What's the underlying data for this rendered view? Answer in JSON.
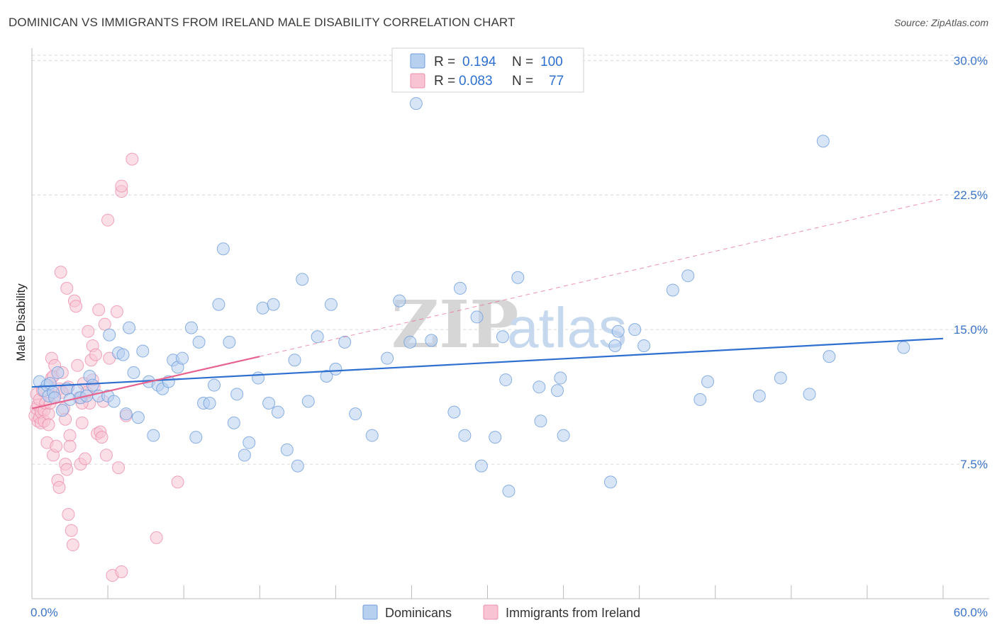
{
  "header": {
    "title": "DOMINICAN VS IMMIGRANTS FROM IRELAND MALE DISABILITY CORRELATION CHART",
    "source": "Source: ZipAtlas.com"
  },
  "watermark": {
    "zip": "ZIP",
    "atlas": "atlas"
  },
  "colors": {
    "blue_fill": "#b8d0f0",
    "blue_stroke": "#6f9edc",
    "blue_line": "#2e6fd0",
    "pink_fill": "#f8c4d4",
    "pink_stroke": "#ee8fab",
    "pink_line": "#e8628e",
    "grid": "#d9d9d9",
    "axis_label": "#3b73c8"
  },
  "legend": {
    "rows": [
      {
        "r_label": "R =",
        "r_value": "0.194",
        "n_label": "N =",
        "n_value": "100",
        "color": "blue"
      },
      {
        "r_label": "R =",
        "r_value": "0.083",
        "n_label": "N =",
        "n_value": "77",
        "color": "pink"
      }
    ]
  },
  "bottom_legend": [
    {
      "label": "Dominicans",
      "color": "blue"
    },
    {
      "label": "Immigrants from Ireland",
      "color": "pink"
    }
  ],
  "chart_data": {
    "type": "scatter",
    "title": "DOMINICAN VS IMMIGRANTS FROM IRELAND MALE DISABILITY CORRELATION CHART",
    "xlabel": "",
    "ylabel": "Male Disability",
    "xlim": [
      0,
      60
    ],
    "ylim": [
      0,
      31
    ],
    "x_tick_labels": [
      "0.0%",
      "60.0%"
    ],
    "y_ticks": [
      7.5,
      15.0,
      22.5,
      30.0
    ],
    "y_tick_labels": [
      "7.5%",
      "15.0%",
      "22.5%",
      "30.0%"
    ],
    "grid": true,
    "series": [
      {
        "name": "Dominicans",
        "color": "blue",
        "r": 0.194,
        "n": 100,
        "trend": {
          "x": [
            0,
            60
          ],
          "y": [
            11.8,
            14.5
          ],
          "dashed_extension": null
        },
        "points": [
          [
            0.5,
            12.1
          ],
          [
            0.8,
            11.6
          ],
          [
            1.0,
            11.9
          ],
          [
            1.1,
            11.3
          ],
          [
            1.2,
            12.0
          ],
          [
            1.4,
            11.5
          ],
          [
            1.5,
            11.2
          ],
          [
            1.7,
            12.6
          ],
          [
            2.0,
            10.5
          ],
          [
            2.3,
            11.7
          ],
          [
            2.5,
            11.1
          ],
          [
            3.0,
            11.6
          ],
          [
            3.2,
            11.2
          ],
          [
            3.6,
            11.3
          ],
          [
            3.8,
            12.4
          ],
          [
            4.0,
            11.9
          ],
          [
            4.4,
            11.3
          ],
          [
            5.0,
            11.3
          ],
          [
            5.1,
            14.7
          ],
          [
            5.4,
            11.0
          ],
          [
            5.7,
            13.7
          ],
          [
            6.0,
            13.6
          ],
          [
            6.2,
            10.3
          ],
          [
            6.4,
            15.1
          ],
          [
            6.7,
            12.6
          ],
          [
            7.0,
            10.1
          ],
          [
            7.3,
            13.8
          ],
          [
            7.7,
            12.1
          ],
          [
            8.0,
            9.1
          ],
          [
            8.3,
            11.9
          ],
          [
            8.6,
            11.7
          ],
          [
            9.0,
            12.1
          ],
          [
            9.3,
            13.3
          ],
          [
            9.6,
            12.9
          ],
          [
            9.9,
            13.4
          ],
          [
            10.5,
            15.1
          ],
          [
            10.8,
            9.0
          ],
          [
            11.0,
            14.3
          ],
          [
            11.3,
            10.9
          ],
          [
            11.7,
            10.9
          ],
          [
            12.0,
            11.9
          ],
          [
            12.3,
            16.4
          ],
          [
            12.6,
            19.5
          ],
          [
            13.0,
            14.3
          ],
          [
            13.3,
            9.8
          ],
          [
            13.5,
            11.4
          ],
          [
            14.0,
            8.0
          ],
          [
            14.3,
            8.7
          ],
          [
            14.9,
            12.3
          ],
          [
            15.2,
            16.2
          ],
          [
            15.6,
            10.9
          ],
          [
            15.9,
            16.4
          ],
          [
            16.2,
            10.4
          ],
          [
            16.8,
            8.3
          ],
          [
            17.3,
            13.3
          ],
          [
            17.5,
            7.4
          ],
          [
            17.8,
            17.8
          ],
          [
            18.2,
            11.0
          ],
          [
            18.8,
            14.6
          ],
          [
            19.4,
            12.4
          ],
          [
            19.7,
            16.4
          ],
          [
            20.0,
            12.8
          ],
          [
            20.6,
            14.3
          ],
          [
            21.3,
            10.3
          ],
          [
            22.4,
            9.1
          ],
          [
            23.4,
            13.4
          ],
          [
            24.2,
            16.6
          ],
          [
            24.9,
            14.3
          ],
          [
            25.3,
            27.6
          ],
          [
            26.3,
            14.4
          ],
          [
            27.8,
            10.4
          ],
          [
            28.2,
            17.3
          ],
          [
            28.5,
            9.1
          ],
          [
            29.3,
            15.7
          ],
          [
            29.6,
            7.4
          ],
          [
            30.5,
            9.0
          ],
          [
            31.0,
            14.6
          ],
          [
            31.2,
            12.2
          ],
          [
            31.4,
            6.0
          ],
          [
            32.0,
            17.9
          ],
          [
            33.4,
            11.8
          ],
          [
            33.5,
            9.9
          ],
          [
            34.6,
            11.6
          ],
          [
            34.8,
            12.3
          ],
          [
            35.0,
            9.1
          ],
          [
            38.1,
            6.5
          ],
          [
            38.4,
            14.1
          ],
          [
            38.6,
            14.9
          ],
          [
            39.7,
            15.0
          ],
          [
            40.3,
            14.1
          ],
          [
            42.2,
            17.2
          ],
          [
            43.2,
            18.0
          ],
          [
            44.0,
            11.1
          ],
          [
            44.5,
            12.1
          ],
          [
            47.9,
            11.3
          ],
          [
            49.3,
            12.3
          ],
          [
            51.2,
            11.4
          ],
          [
            52.1,
            25.5
          ],
          [
            52.5,
            13.5
          ],
          [
            57.4,
            14.0
          ]
        ]
      },
      {
        "name": "Immigrants from Ireland",
        "color": "pink",
        "r": 0.083,
        "n": 77,
        "trend": {
          "x": [
            0,
            15
          ],
          "y": [
            10.6,
            13.5
          ],
          "dashed_extension": {
            "x": [
              15,
              60
            ],
            "y": [
              13.5,
              22.3
            ]
          }
        },
        "points": [
          [
            0.2,
            10.2
          ],
          [
            0.3,
            11.4
          ],
          [
            0.3,
            10.6
          ],
          [
            0.4,
            9.9
          ],
          [
            0.4,
            10.8
          ],
          [
            0.5,
            10.1
          ],
          [
            0.5,
            11.1
          ],
          [
            0.6,
            9.8
          ],
          [
            0.6,
            10.4
          ],
          [
            0.7,
            11.6
          ],
          [
            0.8,
            10.5
          ],
          [
            0.8,
            9.9
          ],
          [
            0.9,
            10.9
          ],
          [
            1.0,
            8.7
          ],
          [
            1.1,
            10.3
          ],
          [
            1.1,
            9.7
          ],
          [
            1.2,
            10.9
          ],
          [
            1.3,
            12.3
          ],
          [
            1.3,
            13.4
          ],
          [
            1.4,
            12.4
          ],
          [
            1.4,
            8.0
          ],
          [
            1.5,
            13.0
          ],
          [
            1.5,
            11.3
          ],
          [
            1.6,
            8.5
          ],
          [
            1.7,
            6.6
          ],
          [
            1.8,
            11.7
          ],
          [
            1.8,
            6.2
          ],
          [
            1.9,
            18.2
          ],
          [
            2.0,
            12.6
          ],
          [
            2.1,
            10.6
          ],
          [
            2.2,
            10.0
          ],
          [
            2.2,
            7.5
          ],
          [
            2.3,
            17.3
          ],
          [
            2.3,
            7.2
          ],
          [
            2.4,
            4.7
          ],
          [
            2.4,
            11.8
          ],
          [
            2.5,
            9.1
          ],
          [
            2.5,
            8.5
          ],
          [
            2.6,
            3.8
          ],
          [
            2.7,
            3.0
          ],
          [
            2.8,
            16.6
          ],
          [
            2.9,
            16.3
          ],
          [
            3.0,
            13.0
          ],
          [
            3.1,
            11.2
          ],
          [
            3.2,
            7.5
          ],
          [
            3.3,
            9.8
          ],
          [
            3.4,
            12.0
          ],
          [
            3.5,
            7.8
          ],
          [
            3.6,
            11.5
          ],
          [
            3.7,
            14.9
          ],
          [
            3.8,
            10.9
          ],
          [
            3.9,
            13.3
          ],
          [
            4.0,
            14.1
          ],
          [
            4.1,
            11.8
          ],
          [
            4.2,
            13.6
          ],
          [
            4.3,
            9.2
          ],
          [
            4.4,
            16.1
          ],
          [
            4.5,
            9.3
          ],
          [
            4.6,
            9.0
          ],
          [
            4.7,
            11.0
          ],
          [
            4.8,
            15.3
          ],
          [
            4.9,
            8.0
          ],
          [
            5.0,
            21.1
          ],
          [
            5.1,
            13.4
          ],
          [
            5.3,
            1.3
          ],
          [
            5.6,
            16.0
          ],
          [
            5.7,
            7.3
          ],
          [
            5.9,
            22.7
          ],
          [
            5.9,
            23.0
          ],
          [
            5.9,
            1.5
          ],
          [
            6.2,
            10.2
          ],
          [
            6.6,
            24.5
          ],
          [
            9.6,
            6.5
          ],
          [
            8.2,
            3.4
          ],
          [
            4.0,
            12.2
          ],
          [
            3.3,
            10.9
          ],
          [
            2.0,
            11.5
          ]
        ]
      }
    ]
  }
}
